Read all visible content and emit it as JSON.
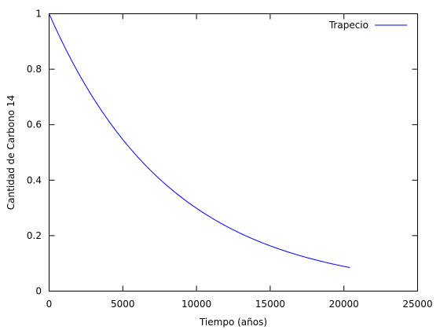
{
  "chart_data": {
    "type": "line",
    "xlabel": "Tiempo (años)",
    "ylabel": "Cantidad de Carbono 14",
    "xlim": [
      0,
      25000
    ],
    "ylim": [
      0,
      1
    ],
    "x_ticks": [
      0,
      5000,
      10000,
      15000,
      20000,
      25000
    ],
    "y_ticks": [
      0,
      0.2,
      0.4,
      0.6,
      0.8,
      1
    ],
    "x_tick_labels": [
      "0",
      "5000",
      "10000",
      "15000",
      "20000",
      "25000"
    ],
    "y_tick_labels": [
      "0",
      "0.2",
      "0.4",
      "0.6",
      "0.8",
      "1"
    ],
    "grid": false,
    "legend_position": "top-right",
    "series": [
      {
        "name": "Trapecio",
        "color": "#0000ff",
        "x": [
          0,
          1000,
          2000,
          3000,
          4000,
          5000,
          6000,
          7000,
          8000,
          9000,
          10000,
          11000,
          12000,
          13000,
          14000,
          15000,
          16000,
          17000,
          18000,
          19000,
          20000,
          20400
        ],
        "y": [
          1.0,
          0.886,
          0.785,
          0.696,
          0.616,
          0.546,
          0.484,
          0.429,
          0.38,
          0.337,
          0.298,
          0.264,
          0.234,
          0.208,
          0.184,
          0.163,
          0.144,
          0.128,
          0.113,
          0.1,
          0.089,
          0.085
        ]
      }
    ]
  }
}
